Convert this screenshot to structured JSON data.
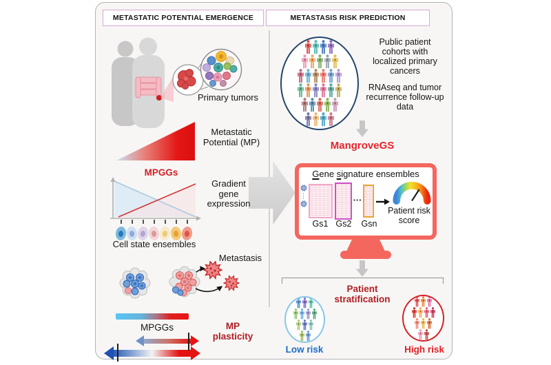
{
  "figure": {
    "headers": {
      "left": "METASTATIC POTENTIAL EMERGENCE",
      "right": "METASTASIS RISK PREDICTION"
    }
  },
  "left": {
    "primary_tumors": "Primary tumors",
    "mp_label": "Metastatic Potential (MP)",
    "mpggs_top": "MPGGs",
    "gradient_expression": "Gradient gene expression",
    "cell_states": "Cell state ensembles",
    "metastasis": "Metastasis",
    "mpggs_bottom": "MPGGs",
    "mp_plasticity": "MP plasticity",
    "cell_ensemble_colors": [
      {
        "body": "#7db9dd",
        "nucleus": "#2879b8"
      },
      {
        "body": "#cfdff2",
        "nucleus": "#8fa9da"
      },
      {
        "body": "#ded6ea",
        "nucleus": "#b4a6cf"
      },
      {
        "body": "#f3d6d7",
        "nucleus": "#d99a9c"
      },
      {
        "body": "#f8e9c9",
        "nucleus": "#eccb79"
      },
      {
        "body": "#f5c977",
        "nucleus": "#e8a133"
      },
      {
        "body": "#ef9c8c",
        "nucleus": "#df5542"
      }
    ]
  },
  "right": {
    "cohort_line1": "Public patient cohorts with localized primary cancers",
    "cohort_line2": "RNAseq and tumor recurrence follow-up data",
    "tool_name": "MangroveGS",
    "gene_sig": {
      "g": "G",
      "ene": "ene ",
      "s": "s",
      "rest": "ignature ensembles"
    },
    "dots": "···",
    "dots_vertical": "⋮",
    "gs_labels": [
      "Gs1",
      "Gs2",
      "Gsn"
    ],
    "gs_border_colors": [
      "#f2a8c8",
      "#cf4fc8",
      "#e8a832"
    ],
    "risk_score": "Patient risk score",
    "stratification": "Patient stratification",
    "low_risk": "Low risk",
    "high_risk": "High risk",
    "cohort_palette": [
      "#d9534f",
      "#56b8b4",
      "#4a7fc1",
      "#8e6cc0",
      "#e89ab6",
      "#f0a860",
      "#7fb069",
      "#9aa5b1",
      "#e3bf5a",
      "#c86480",
      "#62b4d8",
      "#b0885c",
      "#e87a70",
      "#6f9fd8",
      "#b598d8",
      "#5fb890",
      "#e09858",
      "#8585c2",
      "#d87898",
      "#58a8a0",
      "#c0b050",
      "#a87a7a",
      "#4f93b8",
      "#d86858",
      "#88b858",
      "#c898b8",
      "#7878a8",
      "#e8b878",
      "#50a8c8",
      "#c87888"
    ],
    "low_risk_palette": [
      "#4a8fd9",
      "#7b68c8",
      "#56bfa6",
      "#8fc468",
      "#68aee8",
      "#9494d6",
      "#4fa878",
      "#a6cc74",
      "#6076c8",
      "#84c4bc",
      "#9fb958",
      "#5f98d8"
    ],
    "high_risk_palette": [
      "#e05050",
      "#e88838",
      "#e868a0",
      "#d8382e",
      "#f0a858",
      "#e85878",
      "#c83858",
      "#f08878",
      "#e8b848",
      "#d86838",
      "#e898b8",
      "#c84848"
    ]
  },
  "colors": {
    "tool_red": "#e8232b",
    "monitor_border": "#f4675f",
    "stratification_red": "#b01d23",
    "low_risk_blue": "#1e6bc8",
    "high_risk_red": "#e31e24",
    "mpggs_red": "#d42028",
    "header_border": "#d8a8d8",
    "cohort_circle_border": "#23456b",
    "low_circle_border": "#85c6ea",
    "high_circle_border": "#d61f26"
  }
}
